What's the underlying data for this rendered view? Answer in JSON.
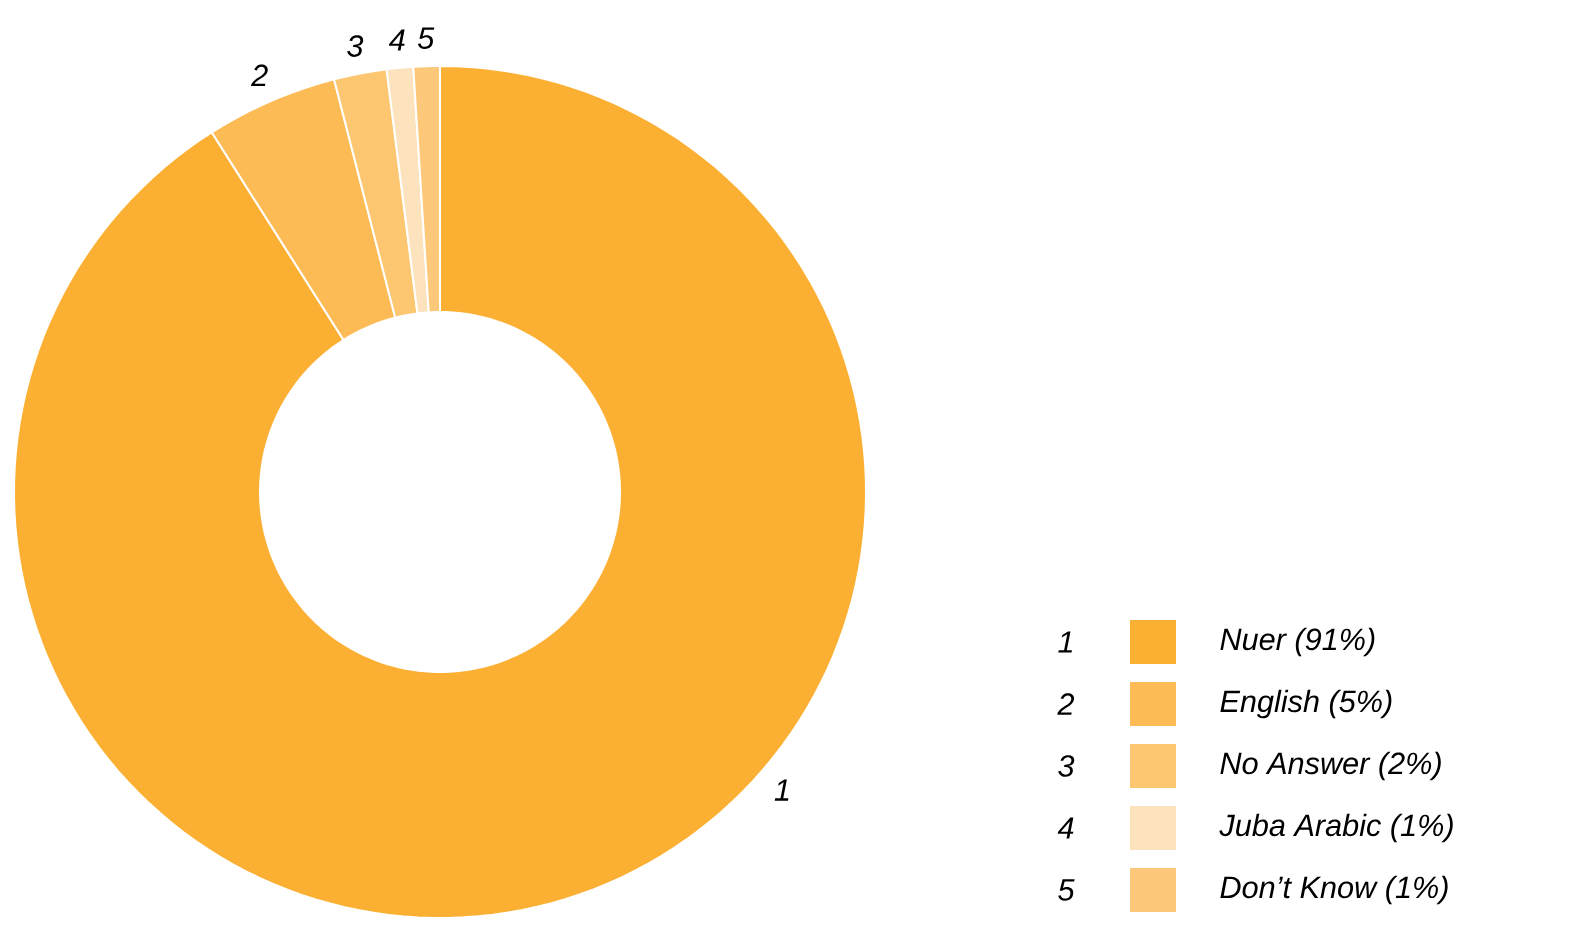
{
  "chart_data": {
    "type": "donut",
    "categories": [
      "Nuer (91%)",
      "English (5%)",
      "No Answer (2%)",
      "Juba Arabic (1%)",
      "Don’t Know (1%)"
    ],
    "values": [
      91,
      5,
      2,
      1,
      1
    ],
    "colors": [
      "#fbb034",
      "#fcbb55",
      "#fdc670",
      "#fde3bd",
      "#fdc87a"
    ],
    "annotations": [
      "1",
      "2",
      "3",
      "4",
      "5"
    ],
    "legend": "bottom right"
  }
}
